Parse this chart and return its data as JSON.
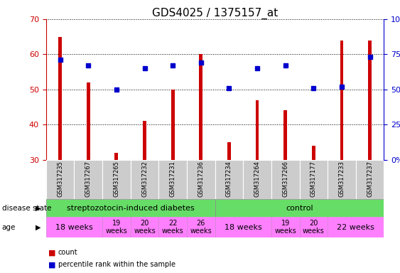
{
  "title": "GDS4025 / 1375157_at",
  "samples": [
    "GSM317235",
    "GSM317267",
    "GSM317265",
    "GSM317232",
    "GSM317231",
    "GSM317236",
    "GSM317234",
    "GSM317264",
    "GSM317266",
    "GSM317177",
    "GSM317233",
    "GSM317237"
  ],
  "counts": [
    65,
    52,
    32,
    41,
    50,
    60,
    35,
    47,
    44,
    34,
    64,
    64
  ],
  "percentiles": [
    71,
    67,
    50,
    65,
    67,
    69,
    51,
    65,
    67,
    51,
    52,
    73
  ],
  "ylim_left": [
    30,
    70
  ],
  "ylim_right": [
    0,
    100
  ],
  "yticks_left": [
    30,
    40,
    50,
    60,
    70
  ],
  "yticks_right": [
    0,
    25,
    50,
    75,
    100
  ],
  "ds_groups": [
    {
      "label": "streptozotocin-induced diabetes",
      "start": 0,
      "end": 6
    },
    {
      "label": "control",
      "start": 6,
      "end": 12
    }
  ],
  "age_groups": [
    {
      "label": "18 weeks",
      "start": 0,
      "end": 1,
      "fontsize": 8
    },
    {
      "label": "19\nweeks",
      "start": 2,
      "end": 2,
      "fontsize": 7
    },
    {
      "label": "20\nweeks",
      "start": 3,
      "end": 3,
      "fontsize": 7
    },
    {
      "label": "22\nweeks",
      "start": 4,
      "end": 4,
      "fontsize": 7
    },
    {
      "label": "26\nweeks",
      "start": 5,
      "end": 5,
      "fontsize": 7
    },
    {
      "label": "18 weeks",
      "start": 6,
      "end": 7,
      "fontsize": 8
    },
    {
      "label": "19\nweeks",
      "start": 8,
      "end": 8,
      "fontsize": 7
    },
    {
      "label": "20\nweeks",
      "start": 9,
      "end": 9,
      "fontsize": 7
    },
    {
      "label": "22 weeks",
      "start": 10,
      "end": 11,
      "fontsize": 8
    }
  ],
  "bar_color": "#CC0000",
  "dot_color": "#0000CC",
  "bg_color": "#FFFFFF",
  "left_axis_color": "#CC0000",
  "right_axis_color": "#0000CC",
  "green_color": "#66DD66",
  "pink_color": "#FF80FF",
  "grey_color": "#CCCCCC",
  "title_fontsize": 11,
  "tick_fontsize": 8,
  "sample_fontsize": 6,
  "ds_fontsize": 8,
  "age_fontsize_large": 8,
  "age_fontsize_small": 7,
  "legend_fontsize": 7
}
